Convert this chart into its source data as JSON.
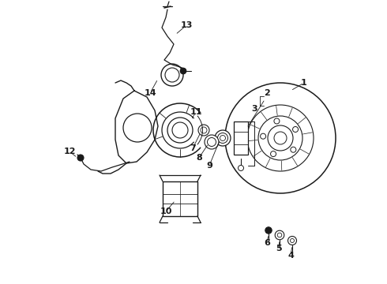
{
  "bg_color": "#ffffff",
  "line_color": "#1a1a1a",
  "fig_width": 4.9,
  "fig_height": 3.6,
  "dpi": 100,
  "label_fontsize": 8,
  "label_fontweight": "bold",
  "xlim": [
    0.0,
    4.9
  ],
  "ylim": [
    0.0,
    3.6
  ]
}
